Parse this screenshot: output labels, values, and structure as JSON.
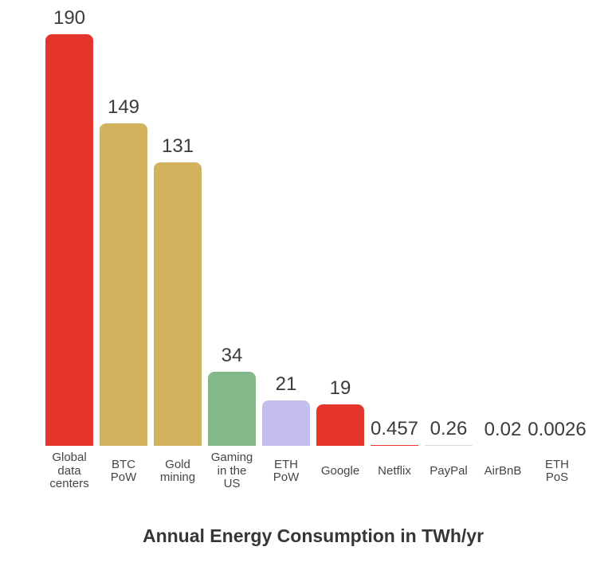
{
  "title": "Annual Energy Consumption in TWh/yr",
  "chart_data": {
    "type": "bar",
    "title": "Annual Energy Consumption in TWh/yr",
    "xlabel": "",
    "ylabel": "",
    "ylim": [
      0,
      200
    ],
    "grid": false,
    "legend": false,
    "categories": [
      "Global data centers",
      "BTC PoW",
      "Gold mining",
      "Gaming in the US",
      "ETH PoW",
      "Google",
      "Netflix",
      "PayPal",
      "AirBnB",
      "ETH PoS"
    ],
    "values": [
      190,
      149,
      131,
      34,
      21,
      19,
      0.457,
      0.26,
      0.02,
      0.0026
    ],
    "value_labels": [
      "190",
      "149",
      "131",
      "34",
      "21",
      "19",
      "0.457",
      "0.26",
      "0.02",
      "0.0026"
    ],
    "category_labels_wrapped": [
      "Global\ndata\ncenters",
      "BTC\nPoW",
      "Gold\nmining",
      "Gaming\nin the\nUS",
      "ETH\nPoW",
      "Google",
      "Netflix",
      "PayPal",
      "AirBnB",
      "ETH\nPoS"
    ],
    "bar_colors": [
      "#e5342b",
      "#d2b25c",
      "#d2b25c",
      "#83b88a",
      "#c4beee",
      "#e5342b",
      "#e5342b",
      "#d9d9e0",
      "#d9d9e0",
      "#d9d9e0"
    ]
  },
  "colors": {
    "background": "#ffffff",
    "value_label_text": "#3b3b3b",
    "category_label_text": "#454545",
    "title_text": "#363639",
    "red": "#e5342b",
    "gold": "#d2b25c",
    "green": "#83b88a",
    "lavender": "#c4beee",
    "faint_gray": "#d9d9e0"
  }
}
